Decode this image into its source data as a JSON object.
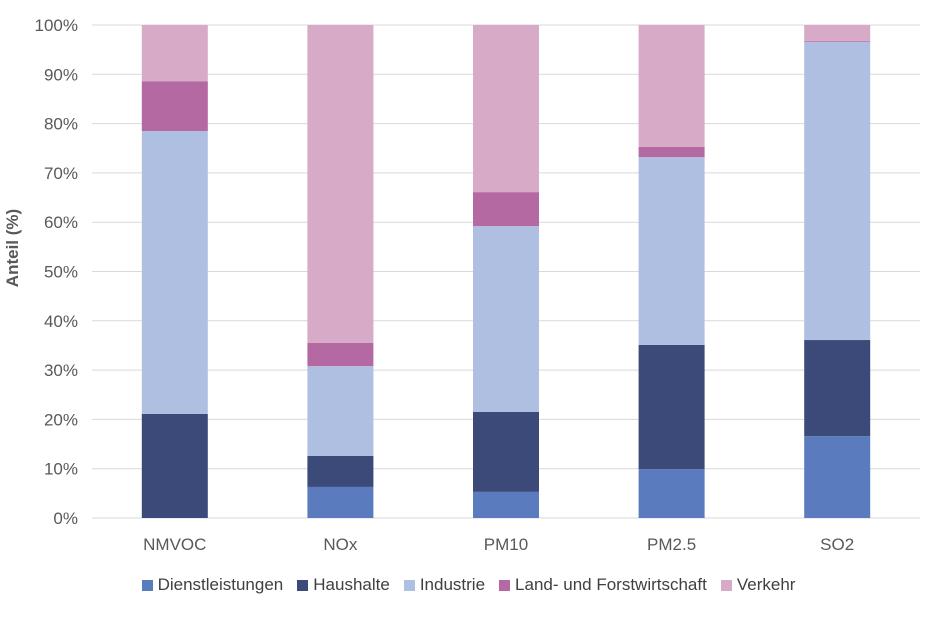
{
  "chart_data": {
    "type": "bar",
    "stacked": true,
    "categories": [
      "NMVOC",
      "NOx",
      "PM10",
      "PM2.5",
      "SO2"
    ],
    "series": [
      {
        "name": "Dienstleistungen",
        "color": "#5B7BBF",
        "values": [
          0,
          6.3,
          5.3,
          9.9,
          16.6
        ]
      },
      {
        "name": "Haushalte",
        "color": "#3B4A78",
        "values": [
          21.1,
          6.3,
          16.2,
          25.2,
          19.5
        ]
      },
      {
        "name": "Industrie",
        "color": "#AFBFE1",
        "values": [
          57.4,
          18.2,
          37.7,
          38.1,
          60.5
        ]
      },
      {
        "name": "Land- und Forstwirtschaft",
        "color": "#B469A2",
        "values": [
          10.1,
          4.7,
          6.9,
          2.1,
          0.2
        ]
      },
      {
        "name": "Verkehr",
        "color": "#D7AAC7",
        "values": [
          11.4,
          64.5,
          33.9,
          24.7,
          3.2
        ]
      }
    ],
    "ylabel": "Anteil (%)",
    "yticks": [
      "0%",
      "10%",
      "20%",
      "30%",
      "40%",
      "50%",
      "60%",
      "70%",
      "80%",
      "90%",
      "100%"
    ],
    "ylim": [
      0,
      100
    ],
    "grid": true,
    "legend": "bottom"
  }
}
